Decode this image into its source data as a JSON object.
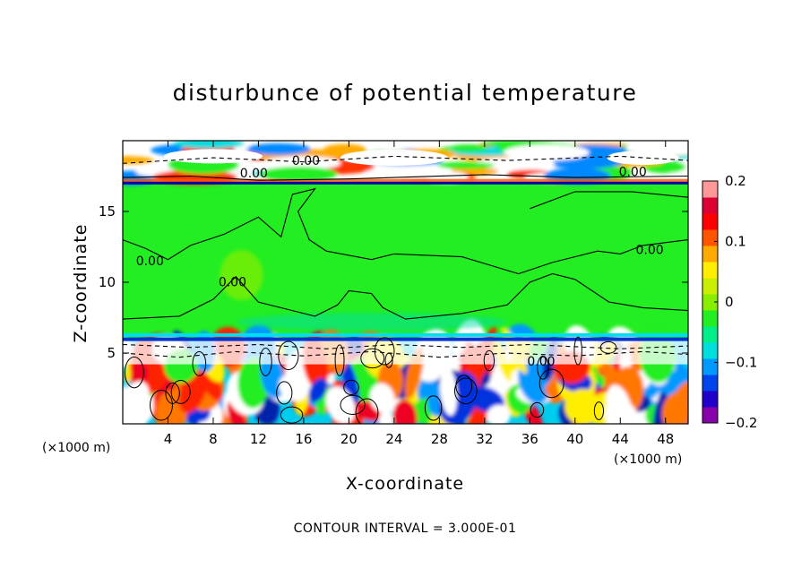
{
  "chart_data": {
    "type": "heatmap",
    "title": "disturbunce of potential temperature",
    "xlabel": "X-coordinate",
    "ylabel": "Z-coordinate",
    "x_unit": "(×1000 m)",
    "x_unit_right": "(×1000 m)",
    "xlim": [
      0,
      50
    ],
    "ylim": [
      0,
      20
    ],
    "xticks": [
      4,
      8,
      12,
      16,
      20,
      24,
      28,
      32,
      36,
      40,
      44,
      48
    ],
    "xtick_labels": [
      "4",
      "8",
      "12",
      "16",
      "20",
      "24",
      "28",
      "32",
      "36",
      "40",
      "44",
      "48"
    ],
    "yticks": [
      5,
      10,
      15
    ],
    "ytick_labels": [
      "5",
      "10",
      "15"
    ],
    "colorbar": {
      "range": [
        -0.2,
        0.2
      ],
      "tick_values": [
        0.2,
        0.1,
        0,
        -0.1,
        -0.2
      ],
      "tick_labels": [
        "0.2",
        "0.1",
        "0",
        "−0.1",
        "−0.2"
      ],
      "colors": [
        "#8800aa",
        "#2200cc",
        "#0044ee",
        "#0099ff",
        "#00dddd",
        "#00ee88",
        "#22ee22",
        "#88ee00",
        "#ccee00",
        "#ffee00",
        "#ffaa00",
        "#ff5500",
        "#ff0000",
        "#dd0033",
        "#ff9999"
      ]
    },
    "contour_interval_text": "CONTOUR INTERVAL = 3.000E-01",
    "contour_labels": [
      {
        "text": "0.00",
        "x": 16.2,
        "y": 18.3
      },
      {
        "text": "0.00",
        "x": 11.6,
        "y": 17.4
      },
      {
        "text": "0.00",
        "x": 45.1,
        "y": 17.5
      },
      {
        "text": "0.00",
        "x": 2.4,
        "y": 11.2
      },
      {
        "text": "0.00",
        "x": 9.7,
        "y": 9.7
      },
      {
        "text": "0.00",
        "x": 46.6,
        "y": 12.0
      },
      {
        "text": "0.00",
        "x": 37.0,
        "y": 4.1
      }
    ]
  }
}
